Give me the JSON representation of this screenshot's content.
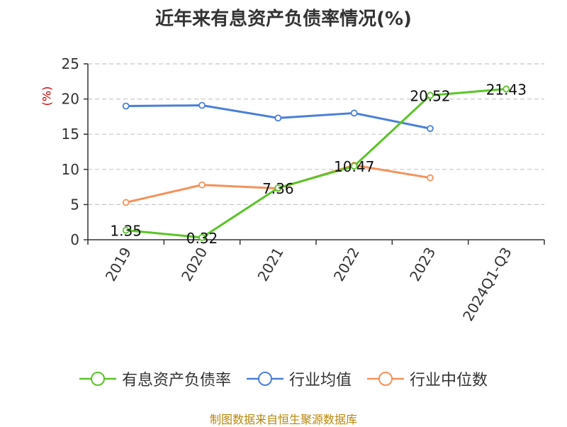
{
  "title": "近年来有息资产负债率情况(%)",
  "source": "制图数据来自恒生聚源数据库",
  "chart_data": {
    "type": "line",
    "title": "近年来有息资产负债率情况(%)",
    "ylabel": "(%)",
    "xlabel": "",
    "ylim": [
      0,
      25
    ],
    "yticks": [
      0,
      5,
      10,
      15,
      20,
      25
    ],
    "grid": true,
    "legend_position": "bottom",
    "categories": [
      "2019",
      "2020",
      "2021",
      "2022",
      "2023",
      "2024Q1-Q3"
    ],
    "series": [
      {
        "name": "有息资产负债率",
        "color": "#5ac427",
        "values": [
          1.35,
          0.32,
          7.36,
          10.47,
          20.52,
          21.43
        ],
        "labels": [
          "1.35",
          "0.32",
          "7.36",
          "10.47",
          "20.52",
          "21.43"
        ]
      },
      {
        "name": "行业均值",
        "color": "#4a7fd8",
        "values": [
          19.0,
          19.1,
          17.3,
          18.0,
          15.8,
          null
        ]
      },
      {
        "name": "行业中位数",
        "color": "#f5915a",
        "values": [
          5.3,
          7.8,
          7.3,
          10.6,
          8.8,
          null
        ]
      }
    ]
  }
}
